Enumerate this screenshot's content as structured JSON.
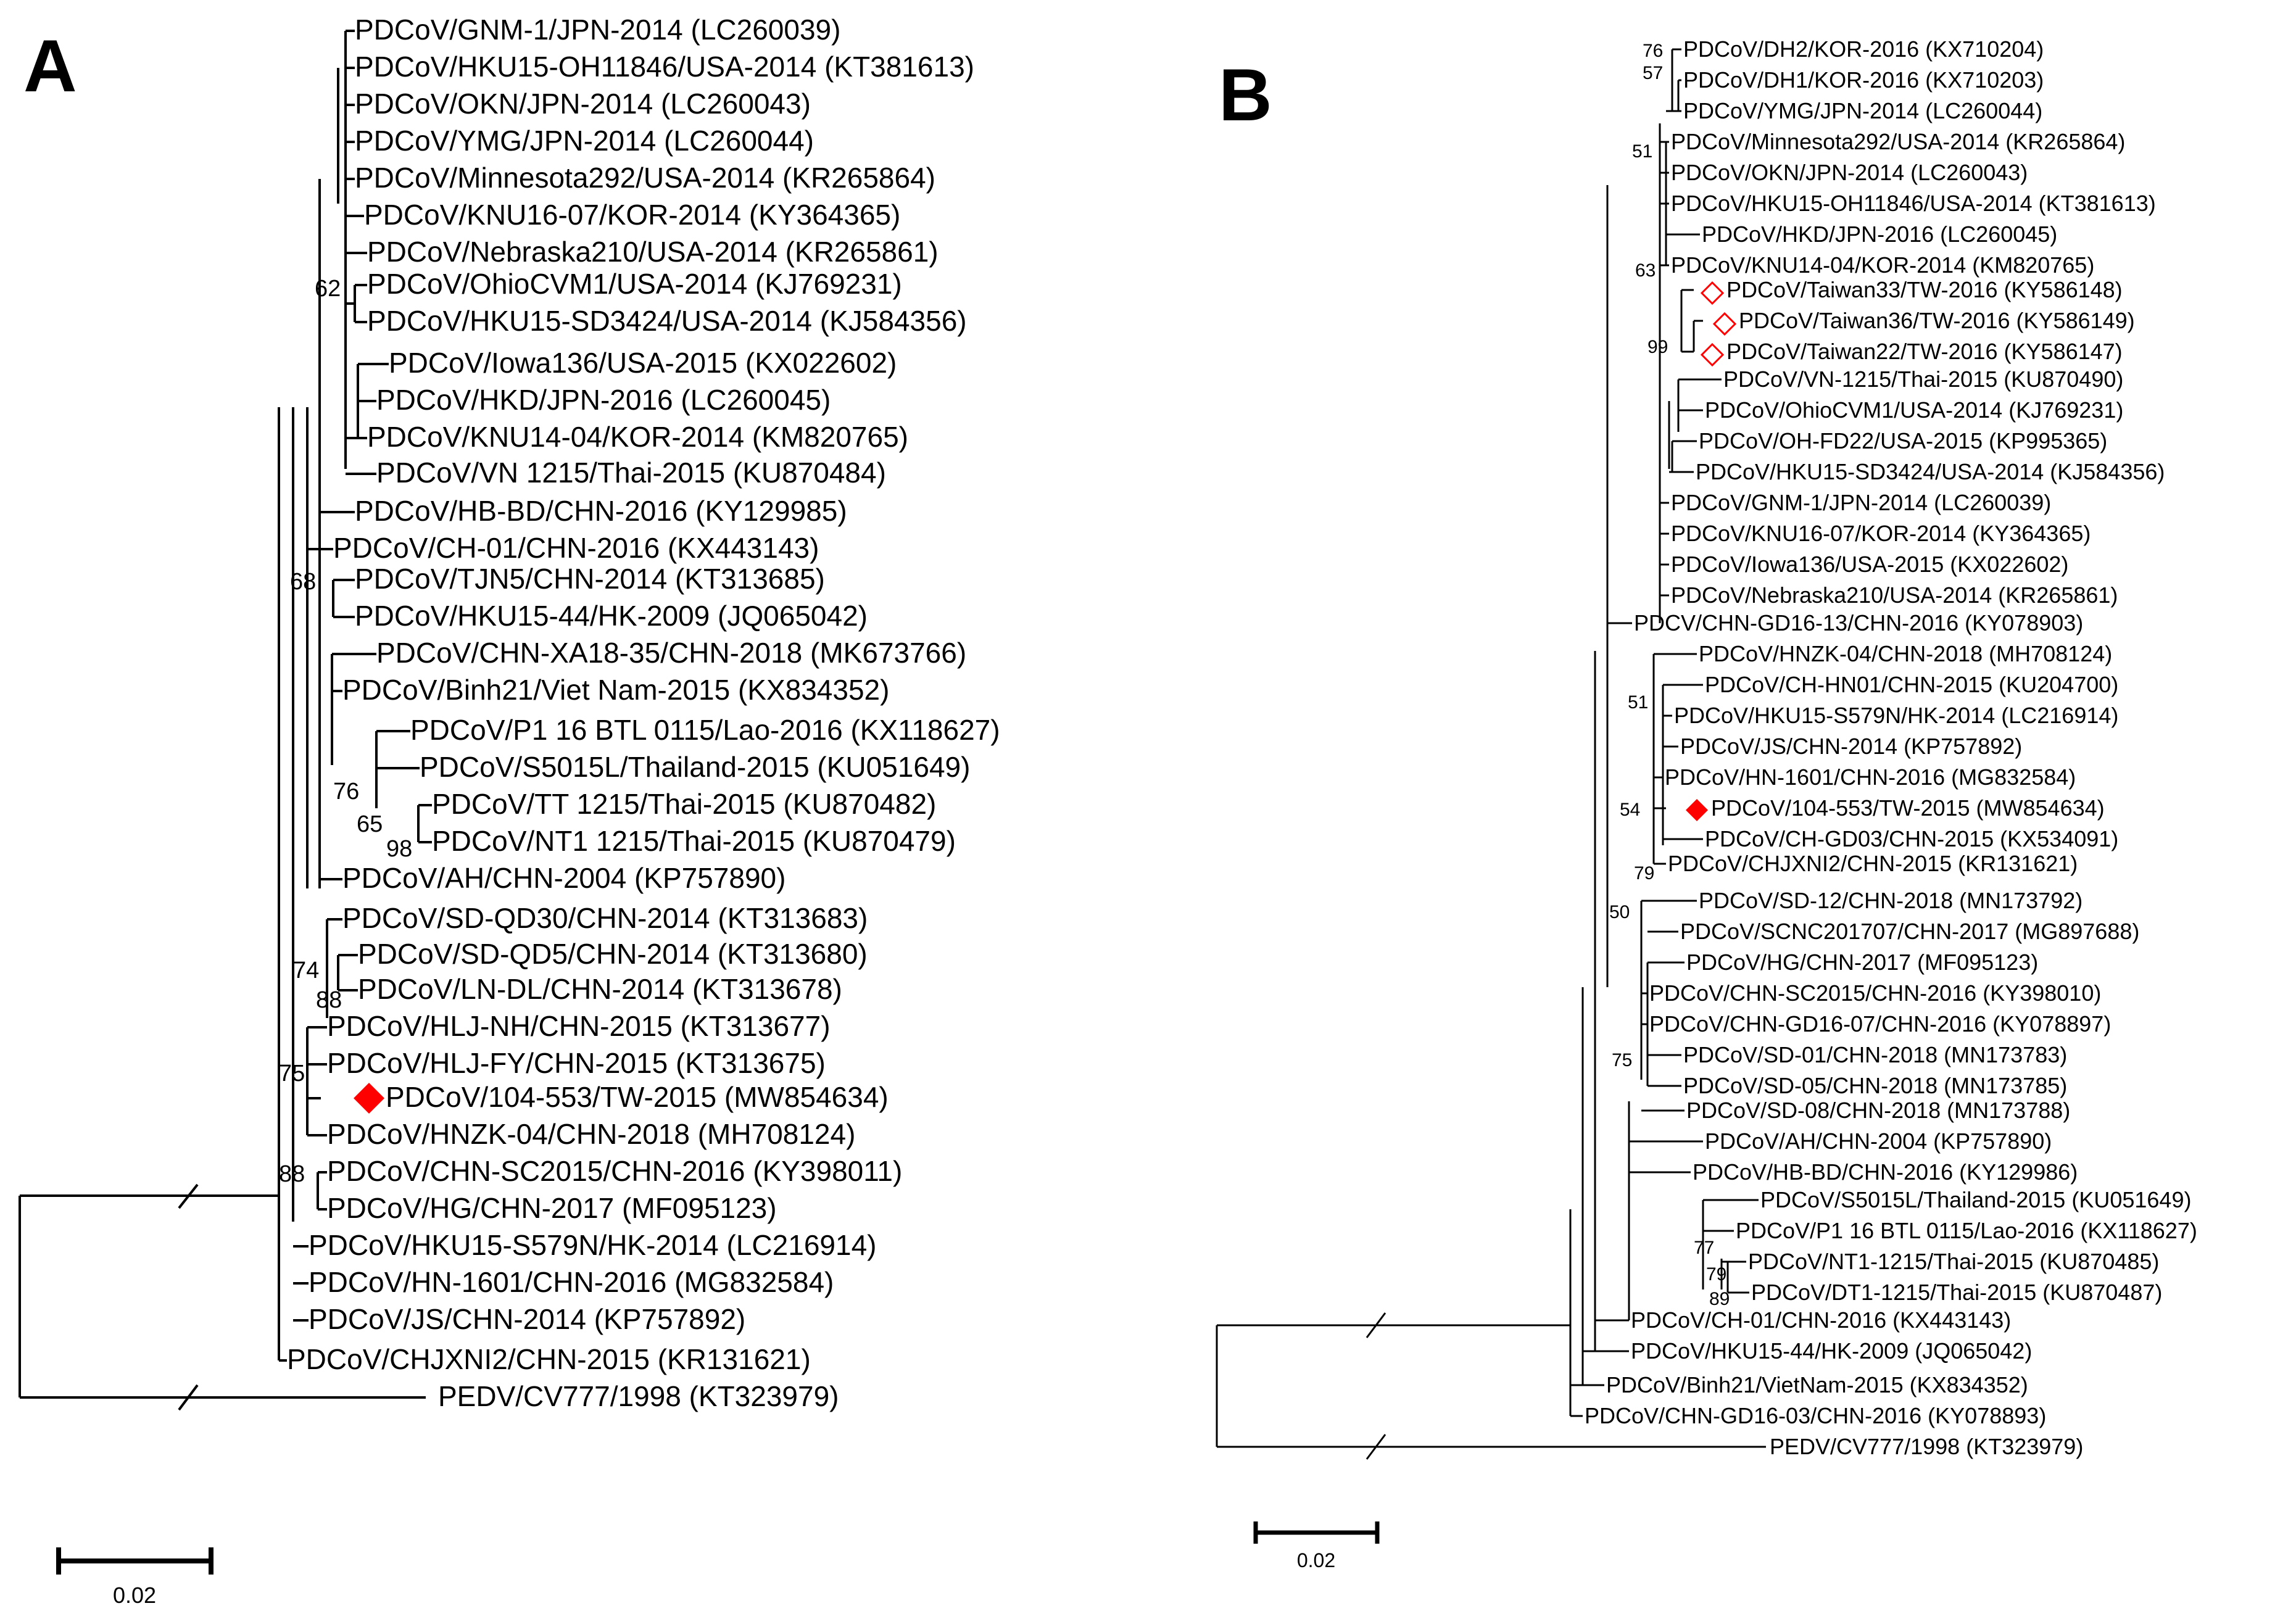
{
  "panel_a": {
    "letter": "A",
    "scale_label": "0.02",
    "leaves": [
      "PDCoV/GNM-1/JPN-2014 (LC260039)",
      "PDCoV/HKU15-OH11846/USA-2014 (KT381613)",
      "PDCoV/OKN/JPN-2014 (LC260043)",
      "PDCoV/YMG/JPN-2014 (LC260044)",
      "PDCoV/Minnesota292/USA-2014 (KR265864)",
      "PDCoV/KNU16-07/KOR-2014 (KY364365)",
      "PDCoV/Nebraska210/USA-2014 (KR265861)",
      "PDCoV/OhioCVM1/USA-2014 (KJ769231)",
      "PDCoV/HKU15-SD3424/USA-2014 (KJ584356)",
      "PDCoV/Iowa136/USA-2015 (KX022602)",
      "PDCoV/HKD/JPN-2016 (LC260045)",
      "PDCoV/KNU14-04/KOR-2014 (KM820765)",
      "PDCoV/VN 1215/Thai-2015 (KU870484)",
      "PDCoV/HB-BD/CHN-2016 (KY129985)",
      "PDCoV/CH-01/CHN-2016 (KX443143)",
      "PDCoV/TJN5/CHN-2014 (KT313685)",
      "PDCoV/HKU15-44/HK-2009 (JQ065042)",
      "PDCoV/CHN-XA18-35/CHN-2018 (MK673766)",
      "PDCoV/Binh21/Viet Nam-2015 (KX834352)",
      "PDCoV/P1 16 BTL 0115/Lao-2016 (KX118627)",
      "PDCoV/S5015L/Thailand-2015 (KU051649)",
      "PDCoV/TT 1215/Thai-2015 (KU870482)",
      "PDCoV/NT1 1215/Thai-2015 (KU870479)",
      "PDCoV/AH/CHN-2004 (KP757890)",
      "PDCoV/SD-QD30/CHN-2014 (KT313683)",
      "PDCoV/SD-QD5/CHN-2014 (KT313680)",
      "PDCoV/LN-DL/CHN-2014 (KT313678)",
      "PDCoV/HLJ-NH/CHN-2015 (KT313677)",
      "PDCoV/HLJ-FY/CHN-2015 (KT313675)",
      "PDCoV/104-553/TW-2015 (MW854634)",
      "PDCoV/HNZK-04/CHN-2018 (MH708124)",
      "PDCoV/CHN-SC2015/CHN-2016 (KY398011)",
      "PDCoV/HG/CHN-2017 (MF095123)",
      "PDCoV/HKU15-S579N/HK-2014 (LC216914)",
      "PDCoV/HN-1601/CHN-2016 (MG832584)",
      "PDCoV/JS/CHN-2014 (KP757892)",
      "PDCoV/CHJXNI2/CHN-2015 (KR131621)",
      "PEDV/CV777/1998 (KT323979)"
    ],
    "bootstraps": [
      "62",
      "68",
      "76",
      "65",
      "98",
      "74",
      "88",
      "75",
      "88"
    ]
  },
  "panel_b": {
    "letter": "B",
    "scale_label": "0.02",
    "leaves": [
      "PDCoV/DH2/KOR-2016 (KX710204)",
      "PDCoV/DH1/KOR-2016 (KX710203)",
      "PDCoV/YMG/JPN-2014 (LC260044)",
      "PDCoV/Minnesota292/USA-2014 (KR265864)",
      "PDCoV/OKN/JPN-2014 (LC260043)",
      "PDCoV/HKU15-OH11846/USA-2014 (KT381613)",
      "PDCoV/HKD/JPN-2016 (LC260045)",
      "PDCoV/KNU14-04/KOR-2014 (KM820765)",
      "PDCoV/Taiwan33/TW-2016 (KY586148)",
      "PDCoV/Taiwan36/TW-2016 (KY586149)",
      "PDCoV/Taiwan22/TW-2016 (KY586147)",
      "PDCoV/VN-1215/Thai-2015 (KU870490)",
      "PDCoV/OhioCVM1/USA-2014 (KJ769231)",
      "PDCoV/OH-FD22/USA-2015 (KP995365)",
      "PDCoV/HKU15-SD3424/USA-2014 (KJ584356)",
      "PDCoV/GNM-1/JPN-2014 (LC260039)",
      "PDCoV/KNU16-07/KOR-2014 (KY364365)",
      "PDCoV/Iowa136/USA-2015 (KX022602)",
      "PDCoV/Nebraska210/USA-2014 (KR265861)",
      "PDCV/CHN-GD16-13/CHN-2016 (KY078903)",
      "PDCoV/HNZK-04/CHN-2018 (MH708124)",
      "PDCoV/CH-HN01/CHN-2015 (KU204700)",
      "PDCoV/HKU15-S579N/HK-2014 (LC216914)",
      "PDCoV/JS/CHN-2014 (KP757892)",
      "PDCoV/HN-1601/CHN-2016 (MG832584)",
      "PDCoV/104-553/TW-2015 (MW854634)",
      "PDCoV/CH-GD03/CHN-2015 (KX534091)",
      "PDCoV/CHJXNI2/CHN-2015 (KR131621)",
      "PDCoV/SD-12/CHN-2018 (MN173792)",
      "PDCoV/SCNC201707/CHN-2017 (MG897688)",
      "PDCoV/HG/CHN-2017 (MF095123)",
      "PDCoV/CHN-SC2015/CHN-2016 (KY398010)",
      "PDCoV/CHN-GD16-07/CHN-2016 (KY078897)",
      "PDCoV/SD-01/CHN-2018 (MN173783)",
      "PDCoV/SD-05/CHN-2018 (MN173785)",
      "PDCoV/SD-08/CHN-2018 (MN173788)",
      "PDCoV/AH/CHN-2004 (KP757890)",
      "PDCoV/HB-BD/CHN-2016 (KY129986)",
      "PDCoV/S5015L/Thailand-2015 (KU051649)",
      "PDCoV/P1 16 BTL 0115/Lao-2016 (KX118627)",
      "PDCoV/NT1-1215/Thai-2015 (KU870485)",
      "PDCoV/DT1-1215/Thai-2015 (KU870487)",
      "PDCoV/CH-01/CHN-2016 (KX443143)",
      "PDCoV/HKU15-44/HK-2009 (JQ065042)",
      "PDCoV/Binh21/VietNam-2015 (KX834352)",
      "PDCoV/CHN-GD16-03/CHN-2016 (KY078893)",
      "PEDV/CV777/1998 (KT323979)"
    ],
    "bootstraps": [
      "76",
      "57",
      "51",
      "63",
      "99",
      "51",
      "54",
      "79",
      "50",
      "75",
      "77",
      "79",
      "89"
    ]
  },
  "colors": {
    "line": "#000000",
    "marker": "#ff0000"
  },
  "marker_legend": {
    "filled_red_diamond": "PDCoV/104-553/TW-2015 (MW854634)",
    "open_red_diamond": [
      "PDCoV/Taiwan33/TW-2016 (KY586148)",
      "PDCoV/Taiwan36/TW-2016 (KY586149)",
      "PDCoV/Taiwan22/TW-2016 (KY586147)"
    ]
  }
}
